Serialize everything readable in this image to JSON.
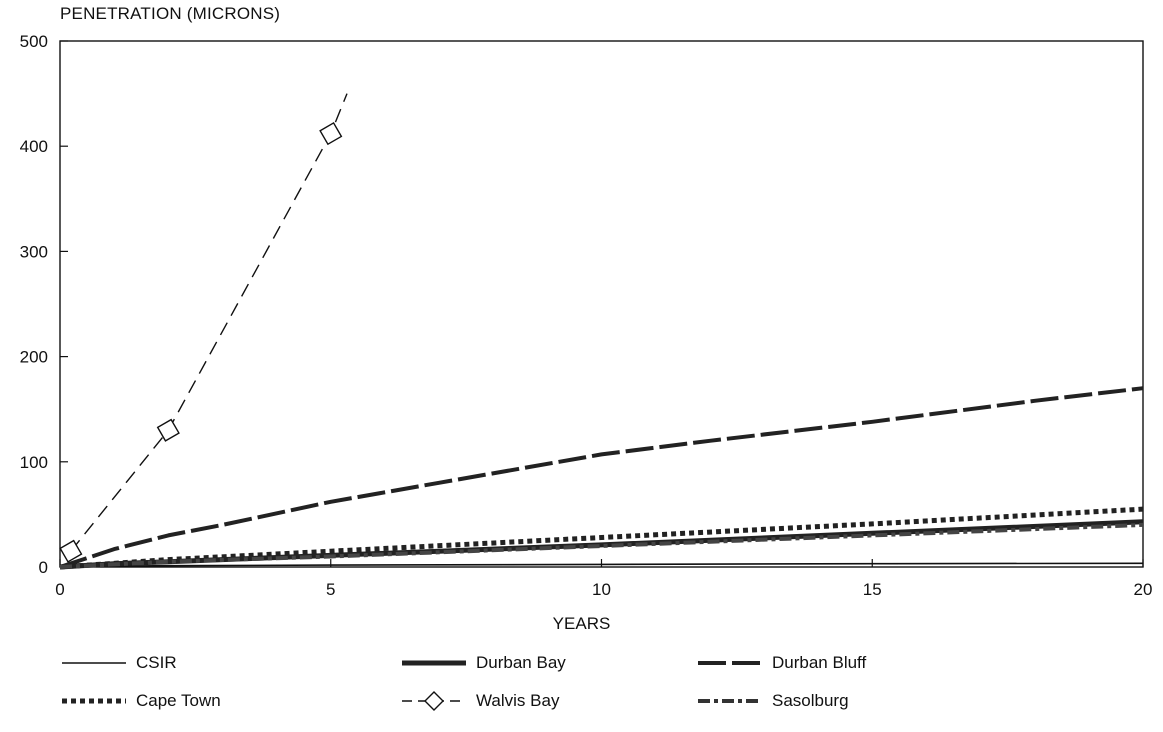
{
  "chart_data": {
    "type": "line",
    "ylabel": "PENETRATION (MICRONS)",
    "xlabel": "YEARS",
    "xlim": [
      0,
      20
    ],
    "ylim": [
      0,
      500
    ],
    "x_ticks": [
      0,
      5,
      10,
      15,
      20
    ],
    "y_ticks": [
      0,
      100,
      200,
      300,
      400,
      500
    ],
    "grid": false,
    "legend_position": "bottom",
    "series": [
      {
        "name": "CSIR",
        "style": "thin-solid",
        "x": [
          0,
          1,
          2,
          5,
          10,
          15,
          20
        ],
        "y": [
          0,
          0.8,
          1.2,
          1.8,
          2.5,
          3.1,
          3.5
        ]
      },
      {
        "name": "Durban Bay",
        "style": "thick-solid",
        "x": [
          0,
          1,
          2,
          3,
          5,
          7,
          10,
          15,
          20
        ],
        "y": [
          0,
          3,
          5,
          7,
          11,
          15,
          21,
          32,
          43
        ]
      },
      {
        "name": "Durban Bluff",
        "style": "thick-long-dash",
        "x": [
          0,
          1,
          2,
          3,
          5,
          7,
          10,
          12,
          15,
          18,
          20
        ],
        "y": [
          0,
          17,
          30,
          40,
          62,
          80,
          107,
          120,
          138,
          158,
          170
        ]
      },
      {
        "name": "Cape Town",
        "style": "thick-dotted",
        "x": [
          0,
          2,
          5,
          10,
          15,
          20
        ],
        "y": [
          0,
          7,
          15,
          28,
          41,
          55
        ]
      },
      {
        "name": "Walvis Bay",
        "style": "dashed-diamond",
        "x": [
          0.2,
          2,
          5,
          5.3
        ],
        "y": [
          15,
          130,
          412,
          450
        ],
        "marker_points": [
          [
            0.2,
            15
          ],
          [
            2,
            130
          ],
          [
            5,
            412
          ]
        ]
      },
      {
        "name": "Sasolburg",
        "style": "dash-dot",
        "x": [
          0,
          2,
          5,
          10,
          15,
          20
        ],
        "y": [
          0,
          5,
          10,
          20,
          30,
          40
        ]
      }
    ]
  }
}
